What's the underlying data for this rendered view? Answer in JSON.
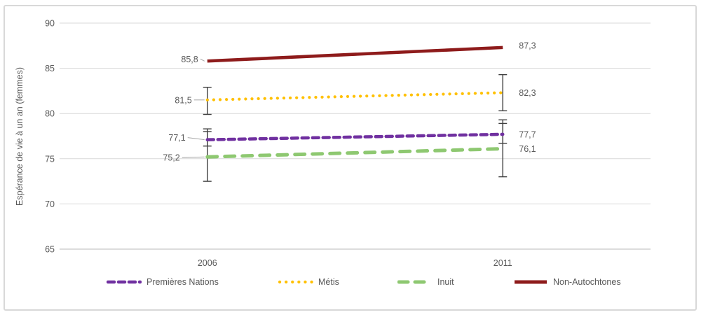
{
  "chart_data": {
    "type": "line",
    "title": "",
    "ylabel": "Espérance de vie à un an (femmes)",
    "xlabel": "",
    "categories": [
      "2006",
      "2011"
    ],
    "ylim": [
      65,
      90
    ],
    "yticks": [
      90,
      85,
      80,
      75,
      70,
      65
    ],
    "grid": "horizontal",
    "legend_position": "bottom",
    "decimal_separator": ",",
    "colors": {
      "grid": "#D9D9D9",
      "baseline": "#C6C6C6",
      "axis_text": "#595959",
      "data_label_text": "#595959",
      "error_bar": "#3F3F3F",
      "leader_line": "#A6A6A6",
      "border": "#D8D8D8",
      "background": "#FFFFFF"
    },
    "series": [
      {
        "name": "Premières Nations",
        "color": "#7030A0",
        "style": "dashed",
        "values": [
          77.1,
          77.7
        ],
        "value_labels": [
          "77,1",
          "77,7"
        ],
        "error_bars": [
          [
            76.4,
            78.0
          ],
          [
            76.7,
            78.9
          ]
        ]
      },
      {
        "name": "Métis",
        "color": "#FFC000",
        "style": "dotted",
        "values": [
          81.5,
          82.3
        ],
        "value_labels": [
          "81,5",
          "82,3"
        ],
        "error_bars": [
          [
            79.9,
            82.9
          ],
          [
            80.3,
            84.3
          ]
        ]
      },
      {
        "name": "Inuit",
        "color": "#8EC871",
        "style": "long-dashed",
        "values": [
          75.2,
          76.1
        ],
        "value_labels": [
          "75,2",
          "76,1"
        ],
        "error_bars": [
          [
            72.5,
            78.3
          ],
          [
            73.0,
            79.3
          ]
        ]
      },
      {
        "name": "Non-Autochtones",
        "color": "#8E1B1B",
        "style": "solid",
        "values": [
          85.8,
          87.3
        ],
        "value_labels": [
          "85,8",
          "87,3"
        ],
        "error_bars": [
          null,
          null
        ]
      }
    ]
  }
}
